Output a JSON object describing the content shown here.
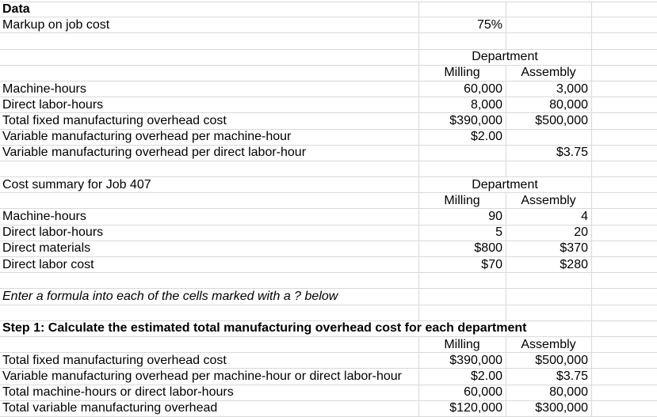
{
  "colors": {
    "background": "#ffffff",
    "gridline": "#d9d9d9",
    "text": "#000000"
  },
  "sections": {
    "data": {
      "title": "Data",
      "markup": {
        "label": "Markup on job cost",
        "value": "75%"
      },
      "department_header": "Department",
      "col_milling": "Milling",
      "col_assembly": "Assembly",
      "rows": [
        {
          "label": "Machine-hours",
          "milling": "60,000",
          "assembly": "3,000"
        },
        {
          "label": "Direct labor-hours",
          "milling": "8,000",
          "assembly": "80,000"
        },
        {
          "label": "Total fixed manufacturing overhead cost",
          "milling": "$390,000",
          "assembly": "$500,000"
        },
        {
          "label": "Variable manufacturing overhead per machine-hour",
          "milling": "$2.00",
          "assembly": ""
        },
        {
          "label": "Variable manufacturing overhead per direct labor-hour",
          "milling": "",
          "assembly": "$3.75"
        }
      ]
    },
    "job407": {
      "title": "Cost summary for Job 407",
      "department_header": "Department",
      "col_milling": "Milling",
      "col_assembly": "Assembly",
      "rows": [
        {
          "label": "Machine-hours",
          "milling": "90",
          "assembly": "4"
        },
        {
          "label": "Direct labor-hours",
          "milling": "5",
          "assembly": "20"
        },
        {
          "label": "Direct materials",
          "milling": "$800",
          "assembly": "$370"
        },
        {
          "label": "Direct labor cost",
          "milling": "$70",
          "assembly": "$280"
        }
      ]
    },
    "note": {
      "text": "Enter a formula into each of the cells marked with a ? below"
    },
    "step1": {
      "title": "Step 1: Calculate the estimated total manufacturing overhead cost for each department",
      "col_milling": "Milling",
      "col_assembly": "Assembly",
      "rows": [
        {
          "label": "Total fixed manufacturing overhead cost",
          "milling": "$390,000",
          "assembly": "$500,000"
        },
        {
          "label": "Variable manufacturing overhead per machine-hour or direct labor-hour",
          "milling": "$2.00",
          "assembly": "$3.75"
        },
        {
          "label": "Total machine-hours or direct labor-hours",
          "milling": "60,000",
          "assembly": "80,000"
        },
        {
          "label": "Total variable manufacturing overhead",
          "milling": "$120,000",
          "assembly": "$300,000"
        }
      ]
    }
  }
}
